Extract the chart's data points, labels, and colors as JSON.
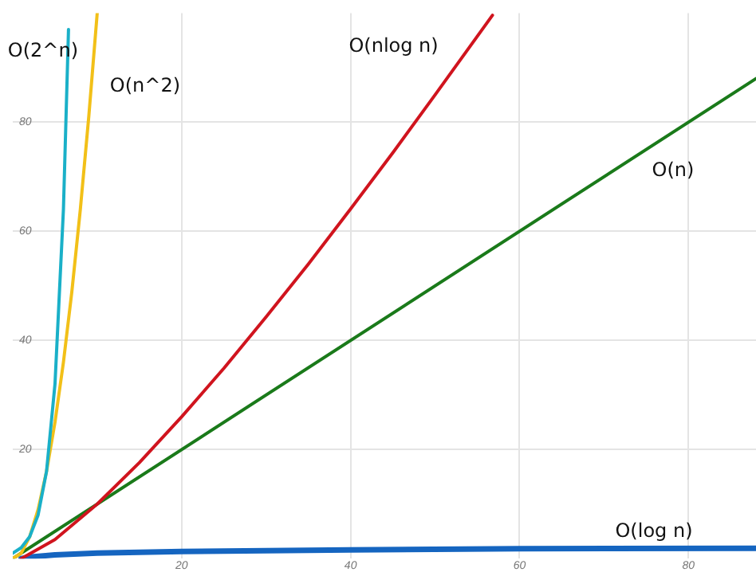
{
  "chart_data": {
    "type": "line",
    "xlim": [
      0,
      88
    ],
    "ylim": [
      0,
      100
    ],
    "xticks": [
      20,
      40,
      60,
      80
    ],
    "yticks": [
      20,
      40,
      60,
      80
    ],
    "grid": true,
    "legend": false,
    "marker": "none",
    "line_style": "solid",
    "series": [
      {
        "name": "O(2^n)",
        "color": "#1ab0c8",
        "x": [
          0,
          1,
          2,
          3,
          4,
          5,
          6,
          6.6
        ],
        "values": [
          1,
          2,
          4,
          8,
          16,
          32,
          64,
          97
        ]
      },
      {
        "name": "O(n^2)",
        "color": "#f2c018",
        "x": [
          0,
          1,
          2,
          3,
          4,
          5,
          6,
          7,
          8,
          9,
          10
        ],
        "values": [
          0,
          1,
          4,
          9,
          16,
          25,
          36,
          49,
          64,
          81,
          100
        ]
      },
      {
        "name": "O(nlog n)",
        "color": "#d0141e",
        "x": [
          1,
          5,
          10,
          15,
          20,
          25,
          30,
          35,
          40,
          45,
          50,
          56.8
        ],
        "values": [
          0,
          3.5,
          10,
          17.6,
          26,
          34.9,
          44.3,
          54,
          64.1,
          74.4,
          85,
          99.6
        ]
      },
      {
        "name": "O(n)",
        "color": "#1a7a1a",
        "x": [
          0,
          88
        ],
        "values": [
          0,
          88
        ]
      },
      {
        "name": "O(log n)",
        "color": "#1565c0",
        "x": [
          1,
          2,
          5,
          10,
          20,
          40,
          60,
          88
        ],
        "values": [
          0,
          0.3,
          0.7,
          1,
          1.3,
          1.6,
          1.8,
          1.9
        ]
      }
    ]
  }
}
